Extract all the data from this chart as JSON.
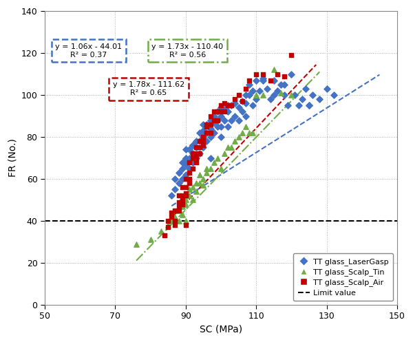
{
  "title": "",
  "xlabel": "SC (MPa)",
  "ylabel": "FR (No.)",
  "xlim": [
    50,
    150
  ],
  "ylim": [
    0,
    140
  ],
  "xticks": [
    50,
    70,
    90,
    110,
    130,
    150
  ],
  "yticks": [
    0,
    20,
    40,
    60,
    80,
    100,
    120,
    140
  ],
  "limit_value": 40,
  "blue_eq": "y = 1.06x - 44.01",
  "blue_r2": "R² = 0.37",
  "green_eq": "y = 1.73x - 110.40",
  "green_r2": "R² = 0.56",
  "red_eq": "y = 1.78x - 111.62",
  "red_r2": "R² = 0.65",
  "blue_slope": 1.06,
  "blue_intercept": -44.01,
  "green_slope": 1.73,
  "green_intercept": -110.4,
  "red_slope": 1.78,
  "red_intercept": -111.62,
  "blue_color": "#4472C4",
  "green_color": "#70AD47",
  "red_color": "#C00000",
  "blue_label": "TT glass_LaserGasp",
  "green_label": "TT glass_Scalp_Tin",
  "red_label": "TT glass_Scalp_Air",
  "limit_label": "Limit value",
  "blue_scatter_x": [
    86,
    87,
    87,
    88,
    88,
    89,
    89,
    89,
    90,
    90,
    90,
    90,
    91,
    91,
    91,
    92,
    92,
    92,
    93,
    93,
    93,
    94,
    94,
    94,
    95,
    95,
    95,
    95,
    96,
    96,
    96,
    97,
    97,
    97,
    97,
    98,
    98,
    98,
    99,
    99,
    99,
    100,
    100,
    100,
    100,
    101,
    101,
    102,
    102,
    103,
    103,
    104,
    104,
    105,
    105,
    106,
    106,
    107,
    107,
    108,
    108,
    109,
    109,
    110,
    110,
    111,
    112,
    113,
    114,
    115,
    115,
    116,
    117,
    118,
    119,
    120,
    121,
    122,
    123,
    124,
    125,
    126,
    128,
    130,
    132,
    90,
    92,
    95,
    98,
    102,
    107,
    112,
    118,
    125
  ],
  "blue_scatter_y": [
    52,
    55,
    60,
    58,
    63,
    60,
    65,
    68,
    62,
    67,
    70,
    74,
    65,
    70,
    74,
    68,
    72,
    76,
    70,
    75,
    78,
    72,
    78,
    82,
    75,
    80,
    83,
    86,
    78,
    82,
    86,
    80,
    84,
    88,
    70,
    82,
    87,
    90,
    85,
    88,
    92,
    80,
    85,
    90,
    94,
    88,
    93,
    85,
    92,
    88,
    95,
    90,
    96,
    88,
    94,
    92,
    97,
    90,
    96,
    100,
    105,
    95,
    102,
    98,
    107,
    102,
    107,
    103,
    98,
    100,
    107,
    102,
    105,
    100,
    95,
    110,
    100,
    95,
    98,
    103,
    95,
    100,
    98,
    103,
    100,
    70,
    76,
    83,
    88,
    95,
    100,
    108,
    105,
    95
  ],
  "green_scatter_x": [
    76,
    80,
    83,
    85,
    86,
    87,
    88,
    88,
    89,
    89,
    90,
    90,
    90,
    91,
    91,
    92,
    92,
    93,
    93,
    94,
    94,
    95,
    95,
    96,
    96,
    97,
    98,
    99,
    100,
    101,
    102,
    103,
    104,
    105,
    106,
    107,
    108,
    109,
    110,
    112,
    115,
    117,
    120
  ],
  "green_scatter_y": [
    29,
    31,
    35,
    38,
    40,
    42,
    40,
    45,
    43,
    47,
    40,
    50,
    48,
    52,
    55,
    50,
    56,
    54,
    58,
    58,
    62,
    60,
    57,
    63,
    65,
    65,
    68,
    70,
    65,
    72,
    75,
    75,
    78,
    80,
    82,
    85,
    82,
    82,
    100,
    100,
    112,
    101,
    100
  ],
  "red_scatter_x": [
    84,
    85,
    85,
    86,
    86,
    87,
    87,
    87,
    88,
    88,
    88,
    88,
    89,
    89,
    89,
    89,
    90,
    90,
    90,
    90,
    90,
    91,
    91,
    91,
    91,
    92,
    92,
    92,
    93,
    93,
    93,
    93,
    94,
    94,
    94,
    95,
    95,
    95,
    96,
    96,
    96,
    97,
    97,
    97,
    98,
    98,
    99,
    99,
    100,
    100,
    101,
    101,
    102,
    103,
    104,
    105,
    106,
    107,
    108,
    110,
    112,
    114,
    116,
    118,
    120
  ],
  "red_scatter_y": [
    33,
    37,
    40,
    42,
    44,
    38,
    45,
    40,
    47,
    49,
    52,
    45,
    48,
    52,
    56,
    50,
    38,
    52,
    56,
    60,
    53,
    58,
    63,
    60,
    68,
    65,
    70,
    72,
    68,
    72,
    75,
    70,
    75,
    78,
    72,
    78,
    80,
    76,
    82,
    86,
    85,
    82,
    86,
    90,
    88,
    92,
    88,
    92,
    92,
    95,
    92,
    96,
    95,
    95,
    98,
    100,
    97,
    103,
    107,
    110,
    110,
    107,
    110,
    109,
    119
  ],
  "blue_trend_x": [
    86,
    145
  ],
  "green_trend_x": [
    76,
    128
  ],
  "red_trend_x": [
    85,
    127
  ],
  "fig_width": 6.0,
  "fig_height": 4.97,
  "dpi": 100,
  "bg_color": "#ffffff",
  "grid_color": "#b0b0b0",
  "grid_linestyle": ":",
  "grid_linewidth": 0.7
}
